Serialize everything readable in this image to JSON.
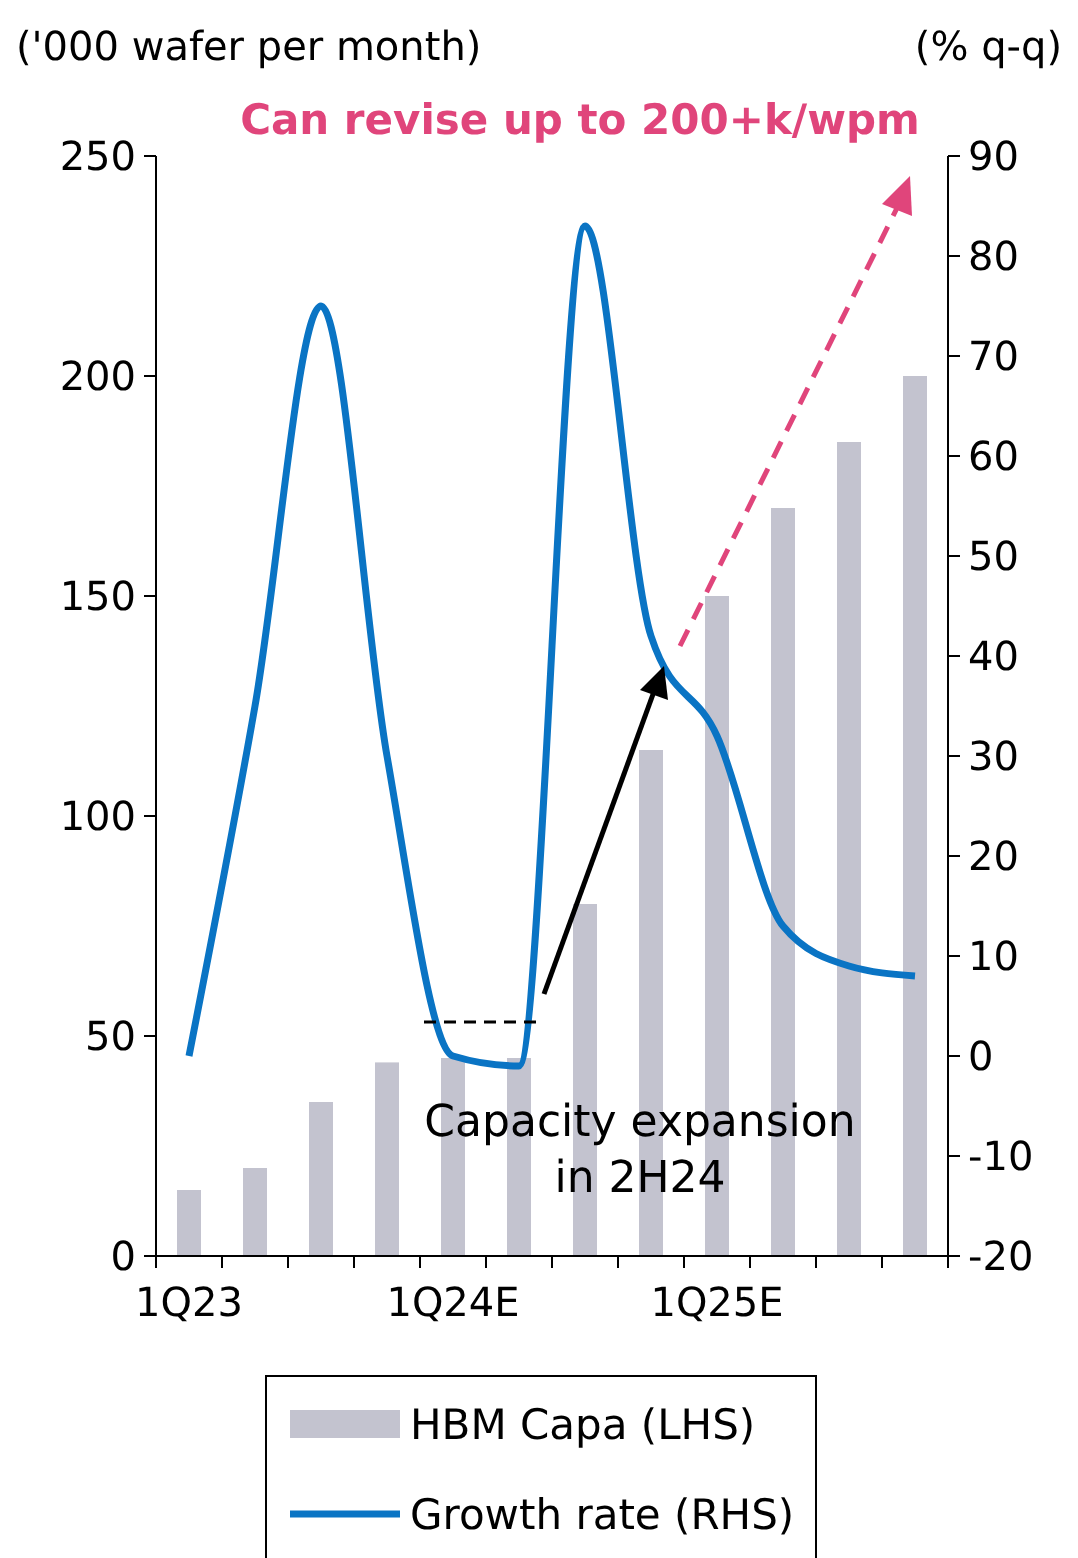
{
  "chart_data": {
    "type": "bar",
    "ylabel": "('000 wafer per month)",
    "y2label": "(% q-q)",
    "categories": [
      "1Q23",
      null,
      null,
      null,
      "1Q24E",
      null,
      null,
      null,
      "1Q25E",
      null,
      null,
      null
    ],
    "series": [
      {
        "name": "HBM Capa (LHS)",
        "color": "#c3c3cf",
        "values": [
          15,
          20,
          35,
          44,
          45,
          45,
          80,
          115,
          150,
          170,
          185,
          200
        ]
      },
      {
        "name": "Growth rate (RHS)",
        "type": "line",
        "axis": "y2",
        "color": "#0a74c4",
        "values": [
          0,
          35,
          75,
          30,
          0,
          -1,
          83,
          42,
          32,
          13,
          9,
          8
        ]
      }
    ],
    "ylim": [
      0,
      250
    ],
    "yticks": [
      0,
      50,
      100,
      150,
      200,
      250
    ],
    "y2lim": [
      -20,
      90
    ],
    "y2ticks": [
      -20,
      -10,
      0,
      10,
      20,
      30,
      40,
      50,
      60,
      70,
      80,
      90
    ],
    "annotations": [
      "Capacity expansion in 2H24",
      "Can revise up to 200+k/wpm"
    ],
    "legend": "bottom",
    "grid": false,
    "marker": "none",
    "line_style": "solid"
  }
}
